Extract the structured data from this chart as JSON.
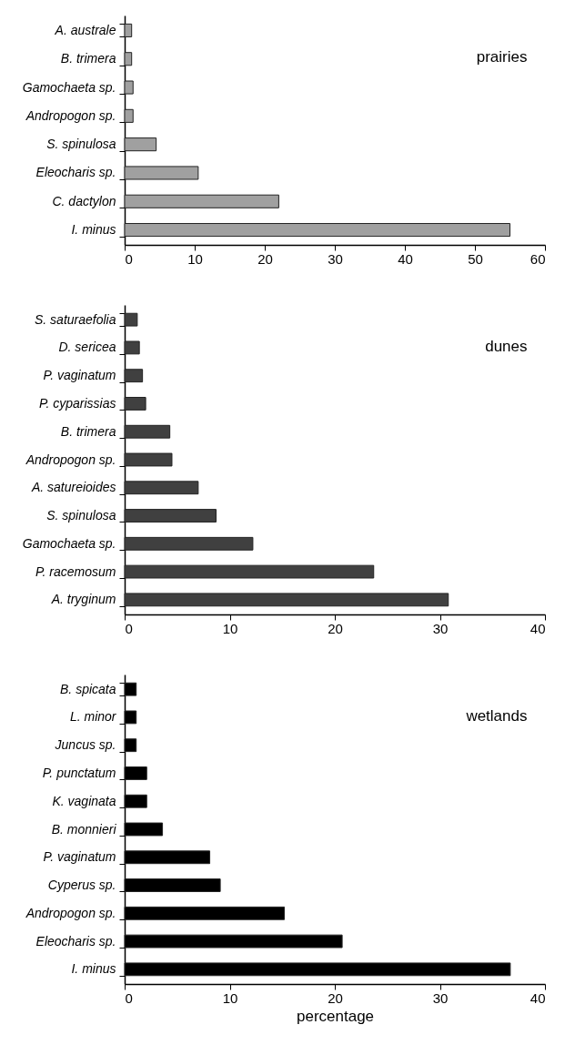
{
  "chart_data": [
    {
      "type": "bar",
      "orientation": "horizontal",
      "title": "prairies",
      "categories": [
        "A. australe",
        "B. trimera",
        "Gamochaeta sp.",
        "Andropogon sp.",
        "S. spinulosa",
        "Eleocharis sp.",
        "C. dactylon",
        "I. minus"
      ],
      "values": [
        1,
        1,
        1.2,
        1.2,
        4.5,
        10.5,
        22,
        55
      ],
      "color": "#a0a0a0",
      "xlim": [
        0,
        60
      ],
      "xticks": [
        0,
        10,
        20,
        30,
        40,
        50,
        60
      ],
      "grid": false
    },
    {
      "type": "bar",
      "orientation": "horizontal",
      "title": "dunes",
      "categories": [
        "S. saturaefolia",
        "D. sericea",
        "P. vaginatum",
        "P. cyparissias",
        "B. trimera",
        "Andropogon sp.",
        "A. satureioides",
        "S. spinulosa",
        "Gamochaeta sp.",
        "P. racemosum",
        "A. tryginum"
      ],
      "values": [
        1.2,
        1.4,
        1.7,
        2.0,
        4.3,
        4.5,
        7.0,
        8.7,
        12.2,
        23.7,
        30.8
      ],
      "color": "#404040",
      "xlim": [
        0,
        40
      ],
      "xticks": [
        0,
        10,
        20,
        30,
        40
      ],
      "grid": false
    },
    {
      "type": "bar",
      "orientation": "horizontal",
      "title": "wetlands",
      "xlabel": "percentage",
      "categories": [
        "B. spicata",
        "L. minor",
        "Juncus sp.",
        "P. punctatum",
        "K. vaginata",
        "B. monnieri",
        "P. vaginatum",
        "Cyperus sp.",
        "Andropogon sp.",
        "Eleocharis sp.",
        "I. minus"
      ],
      "values": [
        1.1,
        1.1,
        1.1,
        2.1,
        2.1,
        3.6,
        8.1,
        9.1,
        15.2,
        20.7,
        36.7
      ],
      "color": "#000000",
      "xlim": [
        0,
        40
      ],
      "xticks": [
        0,
        10,
        20,
        30,
        40
      ],
      "grid": false
    }
  ]
}
